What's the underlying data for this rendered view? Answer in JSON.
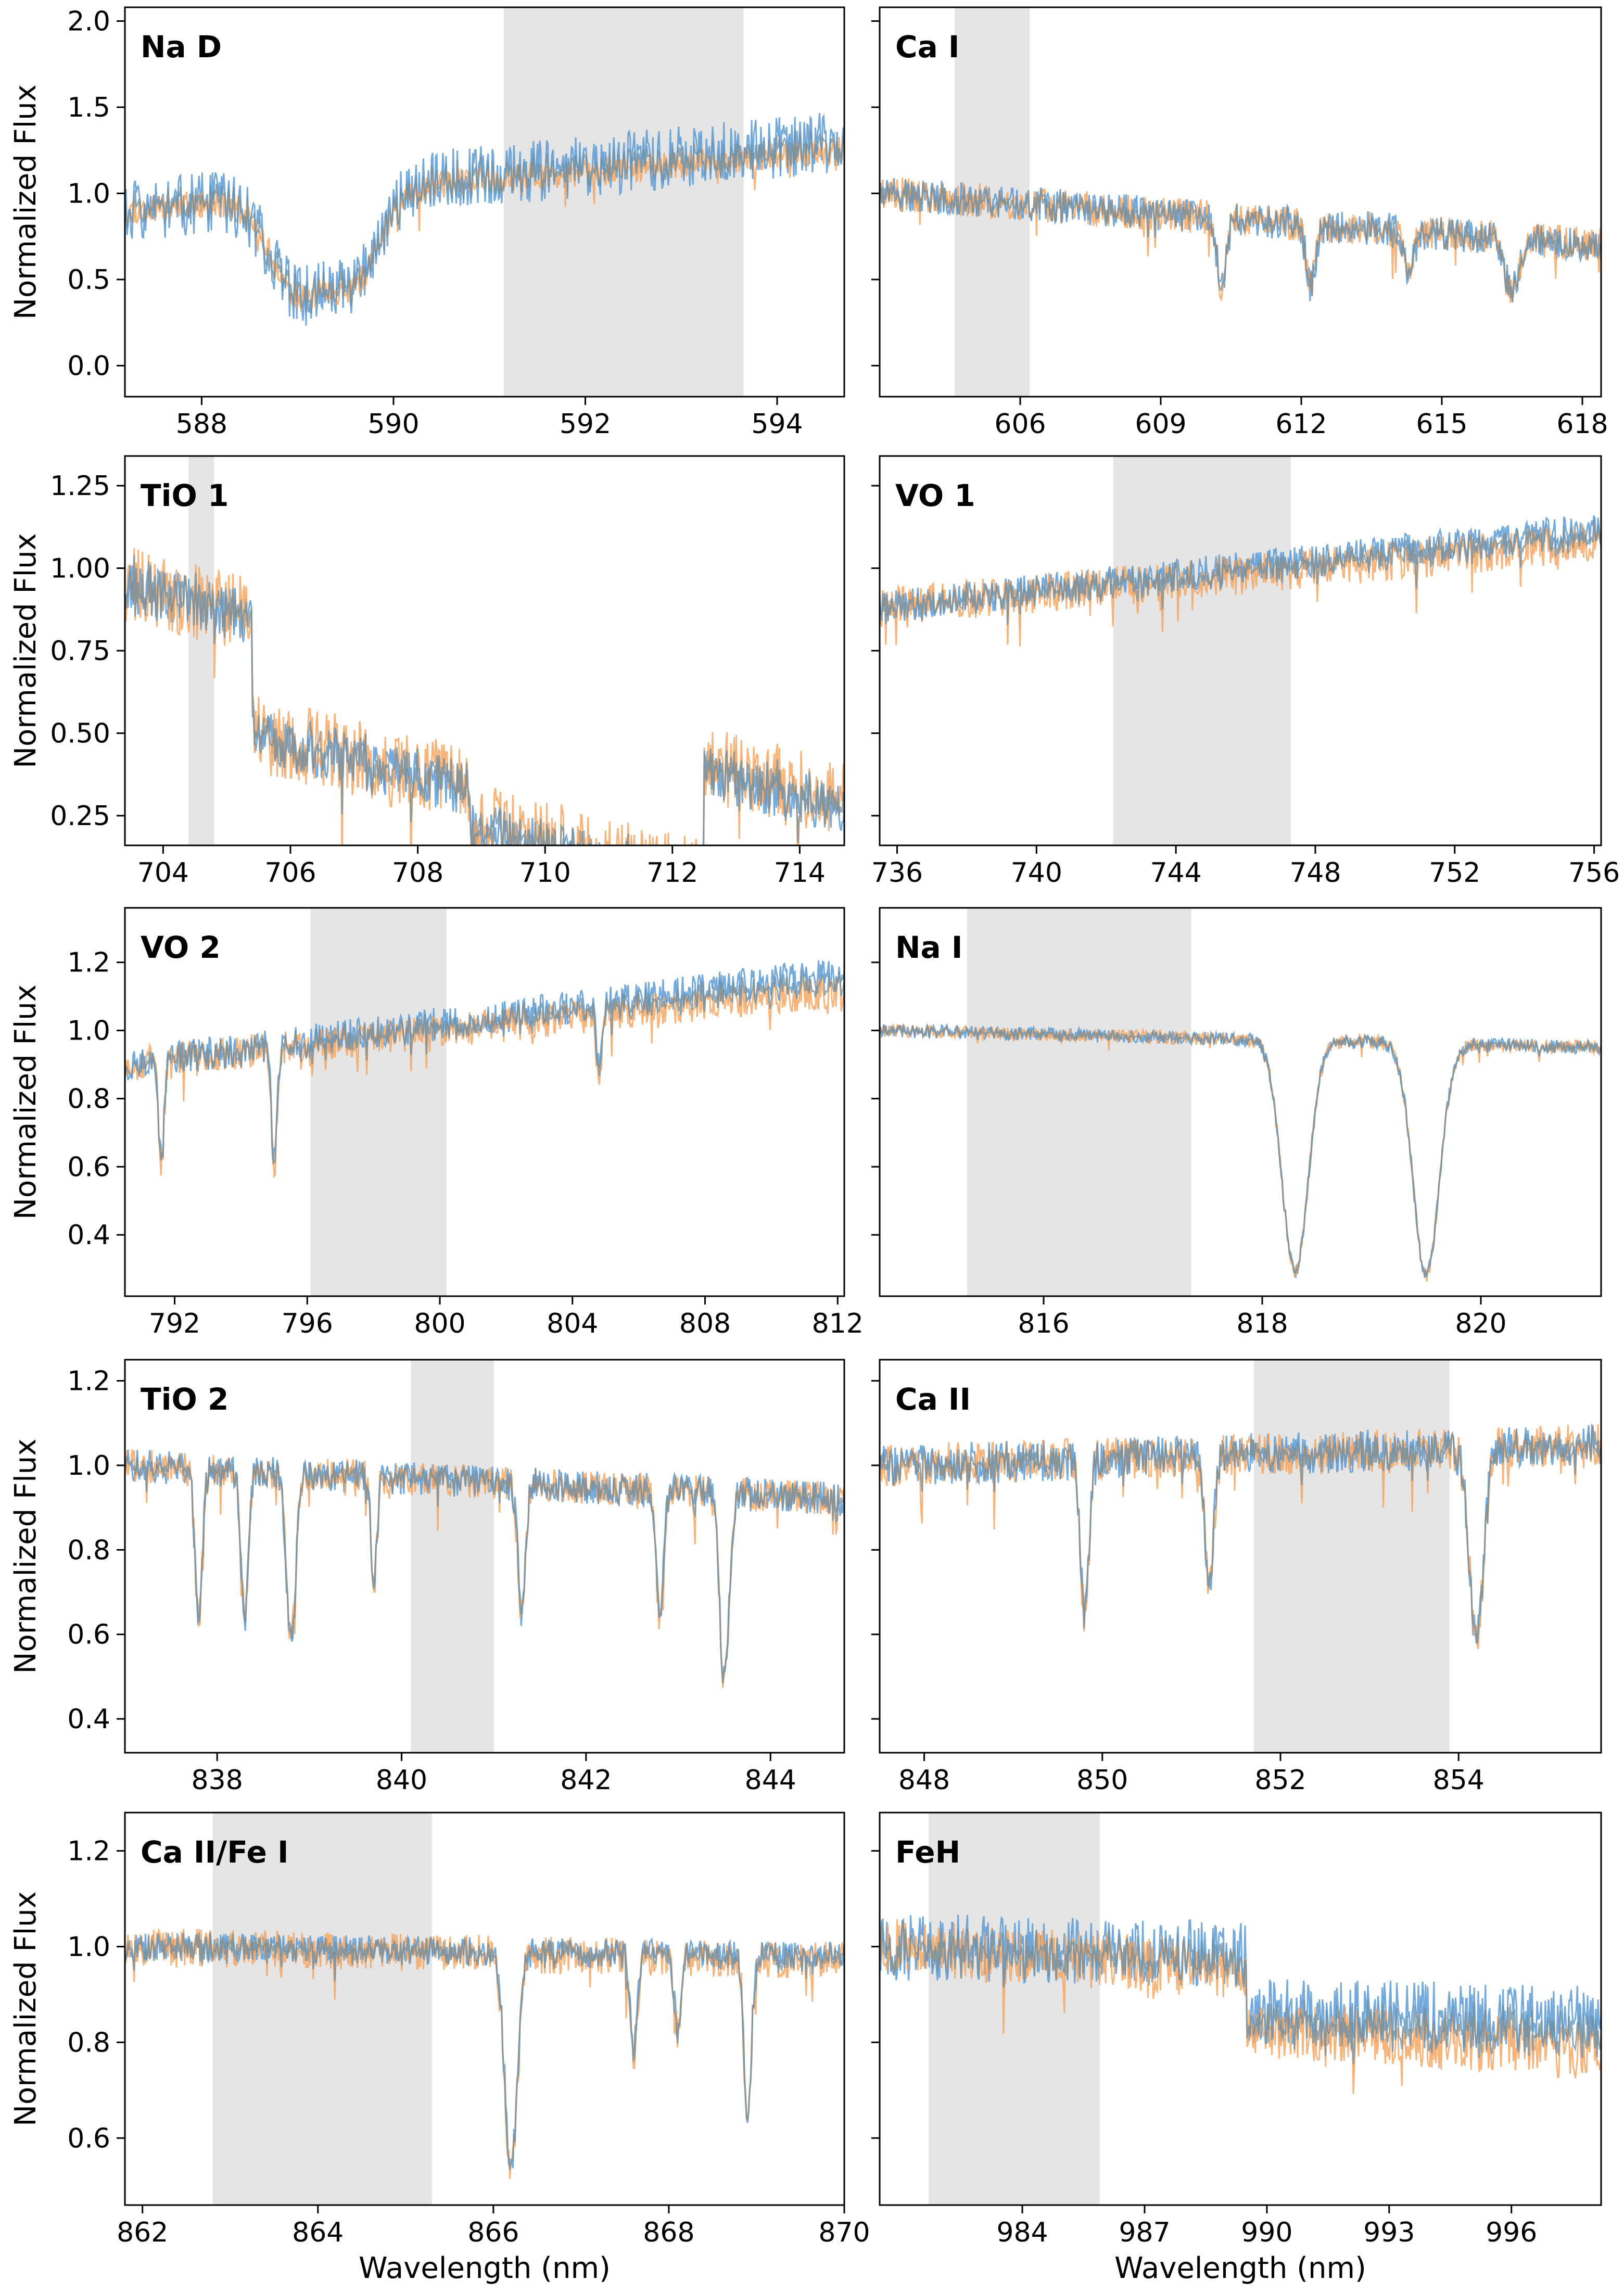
{
  "colors": {
    "observed": "#5b9bd5",
    "model": "#f5a15a",
    "overlap": "#6f8ea0",
    "shade": "#e5e5e5",
    "frame": "#000000"
  },
  "chart_data": [
    {
      "type": "line",
      "title": "Na D",
      "xlim": [
        587.2,
        594.7
      ],
      "ylim": [
        -0.18,
        2.08
      ],
      "xticks": [
        588,
        590,
        592,
        594
      ],
      "yticks": [
        0.0,
        0.5,
        1.0,
        1.5,
        2.0
      ],
      "ytick_labels": [
        "0.0",
        "0.5",
        "1.0",
        "1.5",
        "2.0"
      ],
      "ylabel": "Normalized Flux",
      "xlabel": "",
      "shade": [
        591.15,
        593.65
      ],
      "lines": [
        {
          "c": 589.0,
          "d": 0.55,
          "w": 0.28
        },
        {
          "c": 589.6,
          "d": 0.5,
          "w": 0.26
        }
      ],
      "trend": [
        0.9,
        1.25
      ],
      "noise": 0.08,
      "obs_noise": 0.18,
      "obs_offset": 0.05,
      "seed": 11
    },
    {
      "type": "line",
      "title": "Ca I",
      "xlim": [
        603.0,
        618.4
      ],
      "ylim": [
        -0.18,
        2.08
      ],
      "xticks": [
        606,
        609,
        612,
        615,
        618
      ],
      "yticks": [
        0.0,
        0.5,
        1.0,
        1.5,
        2.0
      ],
      "ytick_labels": [
        "",
        "",
        "",
        "",
        ""
      ],
      "ylabel": "",
      "xlabel": "",
      "shade": [
        604.6,
        606.2
      ],
      "lines": [
        {
          "c": 610.3,
          "d": 0.4,
          "w": 0.1
        },
        {
          "c": 612.2,
          "d": 0.35,
          "w": 0.1
        },
        {
          "c": 614.3,
          "d": 0.25,
          "w": 0.1
        },
        {
          "c": 616.5,
          "d": 0.3,
          "w": 0.15
        }
      ],
      "trend": [
        1.0,
        0.7
      ],
      "noise": 0.1,
      "obs_noise": 0.1,
      "obs_offset": 0.0,
      "seed": 23
    },
    {
      "type": "line",
      "title": "TiO 1",
      "xlim": [
        703.4,
        714.7
      ],
      "ylim": [
        0.16,
        1.34
      ],
      "xticks": [
        704,
        706,
        708,
        710,
        712,
        714
      ],
      "yticks": [
        0.25,
        0.5,
        0.75,
        1.0,
        1.25
      ],
      "ytick_labels": [
        "0.25",
        "0.50",
        "0.75",
        "1.00",
        "1.25"
      ],
      "ylabel": "Normalized Flux",
      "xlabel": "",
      "shade": [
        704.4,
        704.8
      ],
      "lines": [],
      "trend": [
        0.95,
        0.4
      ],
      "noise": 0.12,
      "obs_noise": 0.08,
      "obs_offset": -0.03,
      "seed": 37
    },
    {
      "type": "line",
      "title": "VO 1",
      "xlim": [
        735.5,
        756.2
      ],
      "ylim": [
        0.16,
        1.34
      ],
      "xticks": [
        736,
        740,
        744,
        748,
        752,
        756
      ],
      "yticks": [
        0.25,
        0.5,
        0.75,
        1.0,
        1.25
      ],
      "ytick_labels": [
        "",
        "",
        "",
        "",
        ""
      ],
      "ylabel": "",
      "xlabel": "",
      "shade": [
        742.2,
        747.3
      ],
      "lines": [],
      "trend": [
        0.88,
        1.08
      ],
      "noise": 0.06,
      "obs_noise": 0.05,
      "obs_offset": 0.04,
      "seed": 41
    },
    {
      "type": "line",
      "title": "VO 2",
      "xlim": [
        790.5,
        812.2
      ],
      "ylim": [
        0.22,
        1.36
      ],
      "xticks": [
        792,
        796,
        800,
        804,
        808,
        812
      ],
      "yticks": [
        0.4,
        0.6,
        0.8,
        1.0,
        1.2
      ],
      "ytick_labels": [
        "0.4",
        "0.6",
        "0.8",
        "1.0",
        "1.2"
      ],
      "ylabel": "Normalized Flux",
      "xlabel": "",
      "shade": [
        796.1,
        800.2
      ],
      "lines": [
        {
          "c": 791.6,
          "d": 0.3,
          "w": 0.08
        },
        {
          "c": 795.0,
          "d": 0.35,
          "w": 0.08
        },
        {
          "c": 804.8,
          "d": 0.2,
          "w": 0.08
        }
      ],
      "trend": [
        0.9,
        1.12
      ],
      "noise": 0.05,
      "obs_noise": 0.05,
      "obs_offset": 0.05,
      "seed": 53
    },
    {
      "type": "line",
      "title": "Na I",
      "xlim": [
        814.5,
        821.1
      ],
      "ylim": [
        0.22,
        1.36
      ],
      "xticks": [
        816,
        818,
        820
      ],
      "yticks": [
        0.4,
        0.6,
        0.8,
        1.0,
        1.2
      ],
      "ytick_labels": [
        "",
        "",
        "",
        "",
        ""
      ],
      "ylabel": "",
      "xlabel": "",
      "shade": [
        815.3,
        817.35
      ],
      "lines": [
        {
          "c": 818.3,
          "d": 0.68,
          "w": 0.12
        },
        {
          "c": 819.5,
          "d": 0.68,
          "w": 0.12
        }
      ],
      "trend": [
        1.0,
        0.95
      ],
      "noise": 0.02,
      "obs_noise": 0.02,
      "obs_offset": 0.0,
      "seed": 61
    },
    {
      "type": "line",
      "title": "TiO 2",
      "xlim": [
        837.0,
        844.8
      ],
      "ylim": [
        0.32,
        1.25
      ],
      "xticks": [
        838,
        840,
        842,
        844
      ],
      "yticks": [
        0.4,
        0.6,
        0.8,
        1.0,
        1.2
      ],
      "ytick_labels": [
        "0.4",
        "0.6",
        "0.8",
        "1.0",
        "1.2"
      ],
      "ylabel": "Normalized Flux",
      "xlabel": "",
      "shade": [
        840.1,
        841.0
      ],
      "lines": [
        {
          "c": 837.8,
          "d": 0.35,
          "w": 0.04
        },
        {
          "c": 838.3,
          "d": 0.35,
          "w": 0.04
        },
        {
          "c": 838.8,
          "d": 0.4,
          "w": 0.05
        },
        {
          "c": 839.7,
          "d": 0.25,
          "w": 0.03
        },
        {
          "c": 841.3,
          "d": 0.3,
          "w": 0.04
        },
        {
          "c": 842.8,
          "d": 0.3,
          "w": 0.04
        },
        {
          "c": 843.5,
          "d": 0.45,
          "w": 0.05
        }
      ],
      "trend": [
        1.0,
        0.92
      ],
      "noise": 0.04,
      "obs_noise": 0.04,
      "obs_offset": 0.0,
      "seed": 71
    },
    {
      "type": "line",
      "title": "Ca II",
      "xlim": [
        847.5,
        855.6
      ],
      "ylim": [
        0.32,
        1.25
      ],
      "xticks": [
        848,
        850,
        852,
        854
      ],
      "yticks": [
        0.4,
        0.6,
        0.8,
        1.0,
        1.2
      ],
      "ytick_labels": [
        "",
        "",
        "",
        "",
        ""
      ],
      "ylabel": "",
      "xlabel": "",
      "shade": [
        851.7,
        853.9
      ],
      "lines": [
        {
          "c": 849.8,
          "d": 0.35,
          "w": 0.05
        },
        {
          "c": 851.2,
          "d": 0.3,
          "w": 0.05
        },
        {
          "c": 854.2,
          "d": 0.45,
          "w": 0.08
        }
      ],
      "trend": [
        1.0,
        1.05
      ],
      "noise": 0.05,
      "obs_noise": 0.05,
      "obs_offset": 0.0,
      "seed": 83
    },
    {
      "type": "line",
      "title": "Ca II/Fe I",
      "xlim": [
        861.8,
        870.0
      ],
      "ylim": [
        0.46,
        1.28
      ],
      "xticks": [
        862,
        864,
        866,
        868,
        870
      ],
      "yticks": [
        0.6,
        0.8,
        1.0,
        1.2
      ],
      "ytick_labels": [
        "0.6",
        "0.8",
        "1.0",
        "1.2"
      ],
      "ylabel": "Normalized Flux",
      "xlabel": "Wavelength (nm)",
      "shade": [
        862.8,
        865.3
      ],
      "lines": [
        {
          "c": 866.2,
          "d": 0.45,
          "w": 0.07
        },
        {
          "c": 867.6,
          "d": 0.2,
          "w": 0.04
        },
        {
          "c": 868.1,
          "d": 0.15,
          "w": 0.04
        },
        {
          "c": 868.9,
          "d": 0.35,
          "w": 0.04
        }
      ],
      "trend": [
        1.0,
        0.97
      ],
      "noise": 0.04,
      "obs_noise": 0.03,
      "obs_offset": 0.01,
      "seed": 97
    },
    {
      "type": "line",
      "title": "FeH",
      "xlim": [
        980.5,
        998.2
      ],
      "ylim": [
        0.46,
        1.28
      ],
      "xticks": [
        984,
        987,
        990,
        993,
        996
      ],
      "yticks": [
        0.6,
        0.8,
        1.0,
        1.2
      ],
      "ytick_labels": [
        "",
        "",
        "",
        ""
      ],
      "ylabel": "",
      "xlabel": "Wavelength (nm)",
      "shade": [
        981.7,
        985.9
      ],
      "lines": [],
      "trend": [
        1.0,
        0.9
      ],
      "noise": 0.06,
      "obs_noise": 0.07,
      "obs_offset": 0.07,
      "seed": 101
    }
  ]
}
